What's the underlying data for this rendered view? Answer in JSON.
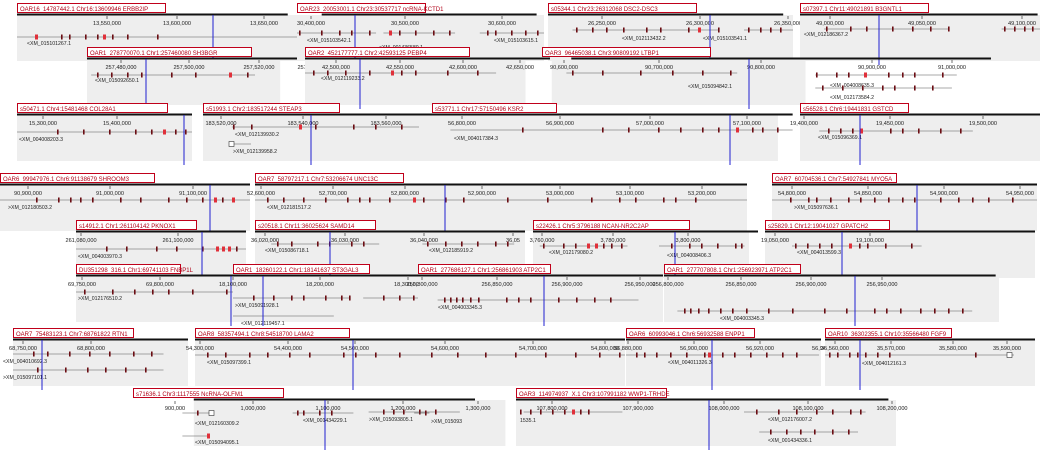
{
  "figure": {
    "panels": [
      {
        "label": "OAR16_14787442.1   Chr16:13609946   ERBB2IP",
        "ticks": [
          "13,550,000",
          "13,600,000",
          "13,650,000"
        ],
        "genes": [
          "<XM_015101267.1"
        ]
      },
      {
        "label": "OAR23_20053001.1   Chr23:30537717   ncRNA-KCTD1",
        "ticks": [
          "30,400,000",
          "30,500,000",
          "30,600,000",
          "30,700,000"
        ],
        "genes": [
          "<XM_015103542.1",
          "<XM_001436580.1",
          "<XM_015103615.1"
        ]
      },
      {
        "label": "s05344.1   Chr23:26312068   DSC2-DSC3",
        "ticks": [
          "26,250,000",
          "26,300,000",
          "26,350,000"
        ],
        "genes": [
          "<XM_012113432.2",
          "<XM_015103541.1"
        ]
      },
      {
        "label": "s07397.1   Chr11:49021891   B3GNTL1",
        "ticks": [
          "49,000,000",
          "49,050,000",
          "49,100,000"
        ],
        "genes": [
          "<XM_012186367.2"
        ]
      },
      {
        "label": "OAR1_278770070.1   Chr1:257460080   SH3BGR",
        "ticks": [
          "257,480,000",
          "257,500,000",
          "257,520,000",
          "257,540,000"
        ],
        "genes": [
          "<XM_015092650.1"
        ]
      },
      {
        "label": "OAR2_452177777.1   Chr2:42593125   PEBP4",
        "ticks": [
          "42,500,000",
          "42,550,000",
          "42,600,000",
          "42,650,000",
          "42,700,000"
        ],
        "genes": [
          "<XM_012119233.2"
        ]
      },
      {
        "label": "OAR3_96465038.1   Chr3:90809192   LTBP1",
        "ticks": [
          "90,600,000",
          "90,700,000",
          "90,800,000",
          "90,900,000",
          "91,000,000"
        ],
        "genes": [
          "<XM_015094842.1",
          "<XM_004008635.3",
          "<XM_012173584.2"
        ]
      },
      {
        "label": "s50471.1   Chr4:15481468   COL28A1",
        "ticks": [
          "15,300,000",
          "15,400,000"
        ],
        "genes": [
          "<XM_004008203.3"
        ]
      },
      {
        "label": "s51993.1   Chr2:183517244   STEAP3",
        "ticks": [
          "183,520,000",
          "183,540,000",
          "183,560,000"
        ],
        "genes": [
          "<XM_012139930.2",
          ">XM_012139958.2"
        ]
      },
      {
        "label": "s53771.1   Chr17:57150496   KSR2",
        "ticks": [
          "56,800,000",
          "56,900,000",
          "57,000,000",
          "57,100,000",
          "57,200,000"
        ],
        "genes": [
          "<XM_004017384.3"
        ]
      },
      {
        "label": "s56528.1   Chr6:19441831   GSTCD",
        "ticks": [
          "19,400,000",
          "19,450,000",
          "19,500,000",
          "19,550,000"
        ],
        "genes": [
          "<XM_015096369.1"
        ]
      },
      {
        "label": "OAR6_99947976.1   Chr6:91138679   SHROOM3",
        "ticks": [
          "90,900,000",
          "91,000,000",
          "91,100,000"
        ],
        "genes": [
          ">XM_012180503.2"
        ]
      },
      {
        "label": "OAR7_58797217.1   Chr7:53206674   UNC13C",
        "ticks": [
          "52,600,000",
          "52,700,000",
          "52,800,000",
          "52,900,000",
          "53,000,000",
          "53,100,000",
          "53,200,000"
        ],
        "genes": [
          "<XM_012181517.2"
        ]
      },
      {
        "label": "OAR7_60704536.1   Chr7:54927841   MYO5A",
        "ticks": [
          "54,800,000",
          "54,850,000",
          "54,900,000",
          "54,950,000"
        ],
        "genes": [
          ">XM_015097636.1"
        ]
      },
      {
        "label": "s14912.1   Chr1:261104142   PKNOX1",
        "ticks": [
          "261,080,000",
          "261,100,000"
        ],
        "genes": [
          "<XM_004003970.3"
        ]
      },
      {
        "label": "s20518.1   Chr11:36025624   SAMD14",
        "ticks": [
          "36,020,000",
          "36,030,000",
          "36,040,000",
          "36,05"
        ],
        "genes": [
          "<XM_015086718.1",
          "<XM_012185919.2"
        ]
      },
      {
        "label": "s22426.1   Chr5:3796188   NCAN-NR2C2AP",
        "ticks": [
          "3,760,000",
          "3,780,000",
          "3,800,000"
        ],
        "genes": [
          "<XM_012179080.2",
          "<XM_004008406.3"
        ]
      },
      {
        "label": "s25829.1   Chr12:19041027   GPATCH2",
        "ticks": [
          "19,050,000",
          "19,100,000"
        ],
        "genes": [
          "<XM_004013599.3"
        ]
      },
      {
        "label": "DU351298_316.1   Chr1:69741103   FNBP1L",
        "ticks": [
          "69,750,000",
          "69,800,000"
        ],
        "genes": [
          ">XM_012176510.2"
        ]
      },
      {
        "label": "OAR1_18260122.1   Chr1:18141637   ST3GAL3",
        "ticks": [
          "18,100,000",
          "18,200,000",
          "18,300,000"
        ],
        "genes": [
          ">XM_015091928.1",
          "<XM_012119457.1"
        ]
      },
      {
        "label": "OAR1_277686127.1   Chr1:256861903   ATP2C1",
        "ticks": [
          "256,800,000",
          "256,850,000",
          "256,900,000",
          "256,950,000"
        ],
        "genes": [
          "<XM_004003345.3"
        ]
      },
      {
        "label": "OAR1_277707808.1   Chr1:256923971   ATP2C1",
        "ticks": [
          "256,800,000",
          "256,850,000",
          "256,900,000",
          "256,950,000"
        ],
        "genes": [
          "<XM_004003345.3"
        ]
      },
      {
        "label": "OAR7_75483123.1   Chr7:68761822   RTN1",
        "ticks": [
          "68,750,000",
          "68,800,000"
        ],
        "genes": [
          "<XM_004010692.3",
          ">XM_015097101.1"
        ]
      },
      {
        "label": "OAR8_58357494.1   Chr8:54518700   LAMA2",
        "ticks": [
          "54,300,000",
          "54,400,000",
          "54,500,000",
          "54,600,000",
          "54,700,000",
          "54,800,000"
        ],
        "genes": [
          "<XM_015097399.1"
        ]
      },
      {
        "label": "OAR6_60993046.1   Chr6:56932588   ENPP1",
        "ticks": [
          "56,880,000",
          "56,900,000",
          "56,920,000",
          "56,940,000"
        ],
        "genes": [
          "<XM_004011326.3"
        ]
      },
      {
        "label": "OAR10_36302355.1   Chr10:35566480   FGF9",
        "ticks": [
          "35,560,000",
          "35,570,000",
          "35,580,000",
          "35,590,000"
        ],
        "genes": [
          "<XM_004012161.3"
        ]
      },
      {
        "label": "s71636.1   Chr3:1117555   NcRNA-OLFM1",
        "ticks": [
          "900,000",
          "1,000,000",
          "1,100,000",
          "1,200,000",
          "1,300,000"
        ],
        "genes": [
          ">XM_015093805.1",
          "<XM_012160309.2",
          "<XM_001434229.1",
          ">XM_015093",
          "<XM_015094095.1"
        ]
      },
      {
        "label": "OAR3_114974937_X.1   Chr3:107991182   WWP1-TRHDE",
        "ticks": [
          "107,800,000",
          "107,900,000",
          "108,000,000",
          "108,100,000",
          "108,200,000"
        ],
        "genes": [
          "1535.1",
          "<XM_012176007.2",
          "<XM_001434336.1",
          ">XM_004007369.3"
        ]
      }
    ]
  },
  "colors": {
    "label_border": "#c0001a",
    "label_text": "#b00016",
    "marker": "#2020d0",
    "exon": "#6b0d13",
    "exon_highlight": "#e0303a",
    "ideogram": "#111111",
    "track_bg": "#eeeeee",
    "text": "#222222"
  }
}
